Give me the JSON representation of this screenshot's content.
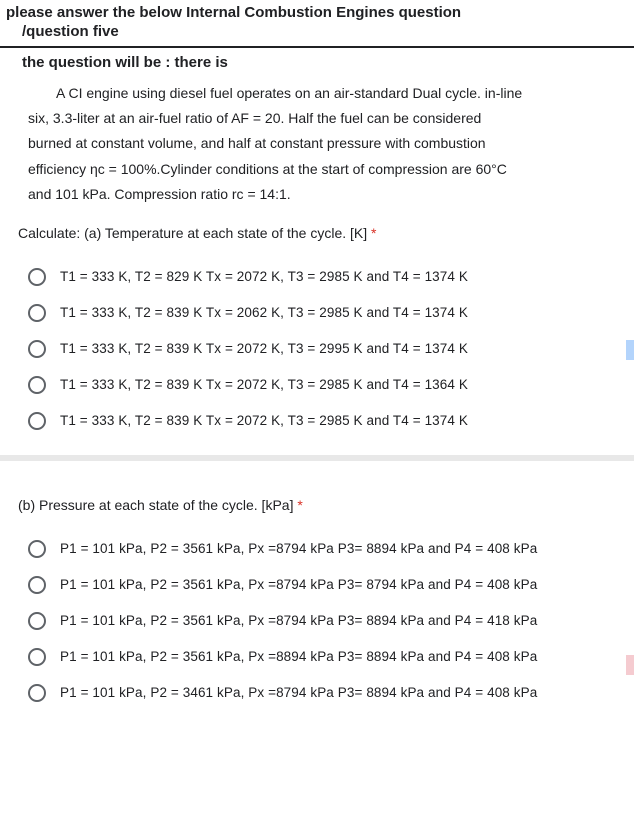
{
  "header": {
    "title": "please answer the below Internal Combustion Engines question",
    "sub": "/question five",
    "lead": "the question will be :  there is"
  },
  "problem": {
    "l1": "A CI engine using diesel fuel operates on an air-standard Dual cycle. in-line",
    "l2": "six, 3.3-liter at an air-fuel ratio of AF = 20. Half the fuel can be considered",
    "l3": "burned at constant volume, and half at constant pressure with combustion",
    "l4": "efficiency ηc = 100%.Cylinder conditions at the start of compression are 60°C",
    "l5": "and 101 kPa. Compression ratio rc = 14:1."
  },
  "partA": {
    "prompt": "Calculate: (a) Temperature at each state of the cycle. [K]",
    "star": " *",
    "options": [
      "T1 = 333 K, T2 = 829 K Tx = 2072 K, T3 = 2985 K and T4 = 1374 K",
      "T1 = 333 K, T2 = 839 K Tx = 2062 K, T3 = 2985 K and T4 = 1374 K",
      "T1 = 333 K, T2 = 839 K Tx = 2072 K, T3 = 2995 K and T4 = 1374 K",
      "T1 = 333 K, T2 = 839 K Tx = 2072 K, T3 = 2985 K and T4 = 1364 K",
      "T1 = 333 K, T2 = 839 K Tx = 2072 K, T3 = 2985 K and T4 = 1374 K"
    ]
  },
  "partB": {
    "prompt": "(b) Pressure at each state of the cycle. [kPa]",
    "star": " *",
    "options": [
      "P1 = 101 kPa, P2 = 3561 kPa, Px =8794 kPa P3= 8894 kPa and P4 = 408 kPa",
      "P1 = 101 kPa, P2 = 3561 kPa, Px =8794 kPa P3= 8794 kPa and P4 = 408 kPa",
      "P1 = 101 kPa, P2 = 3561 kPa, Px =8794 kPa P3= 8894 kPa and P4 = 418 kPa",
      "P1 = 101 kPa, P2 = 3561 kPa, Px =8894 kPa P3= 8894 kPa and P4 = 408 kPa",
      "P1 = 101 kPa, P2 = 3461 kPa, Px =8794 kPa P3= 8894 kPa and P4 = 408 kPa"
    ]
  },
  "colors": {
    "text": "#202124",
    "required": "#d93025",
    "radio_border": "#5f6368",
    "divider": "#e8e8e8",
    "tab_blue": "#b3d4fc",
    "tab_pink": "#f5cbd0",
    "bg": "#ffffff"
  }
}
